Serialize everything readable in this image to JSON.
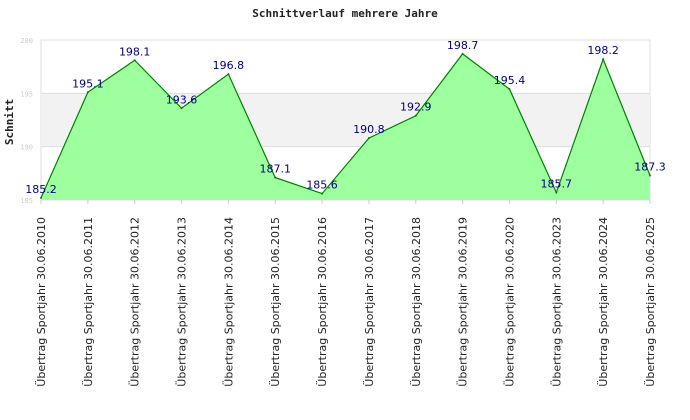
{
  "chart_data": {
    "type": "area",
    "title": "Schnittverlauf mehrere Jahre",
    "xlabel": "",
    "ylabel": "Schnitt",
    "ylim": [
      185,
      200
    ],
    "yticks": [
      "185",
      "190",
      "195",
      "200"
    ],
    "categories": [
      "Übertrag Sportjahr 30.06.2010",
      "Übertrag Sportjahr 30.06.2011",
      "Übertrag Sportjahr 30.06.2012",
      "Übertrag Sportjahr 30.06.2013",
      "Übertrag Sportjahr 30.06.2014",
      "Übertrag Sportjahr 30.06.2015",
      "Übertrag Sportjahr 30.06.2016",
      "Übertrag Sportjahr 30.06.2017",
      "Übertrag Sportjahr 30.06.2018",
      "Übertrag Sportjahr 30.06.2019",
      "Übertrag Sportjahr 30.06.2020",
      "Übertrag Sportjahr 30.06.2023",
      "Übertrag Sportjahr 30.06.2024",
      "Übertrag Sportjahr 30.06.2025"
    ],
    "values": [
      185.2,
      195.1,
      198.1,
      193.6,
      196.8,
      187.1,
      185.6,
      190.8,
      192.9,
      198.7,
      195.4,
      185.7,
      198.2,
      187.3
    ],
    "labels": [
      "185.2",
      "195.1",
      "198.1",
      "193.6",
      "196.8",
      "187.1",
      "185.6",
      "190.8",
      "192.9",
      "198.7",
      "195.4",
      "185.7",
      "198.2",
      "187.3"
    ],
    "colors": {
      "fill": "#99ff99",
      "line": "#008000",
      "label": "#000080",
      "band": "#f2f2f2"
    },
    "grid": true
  }
}
